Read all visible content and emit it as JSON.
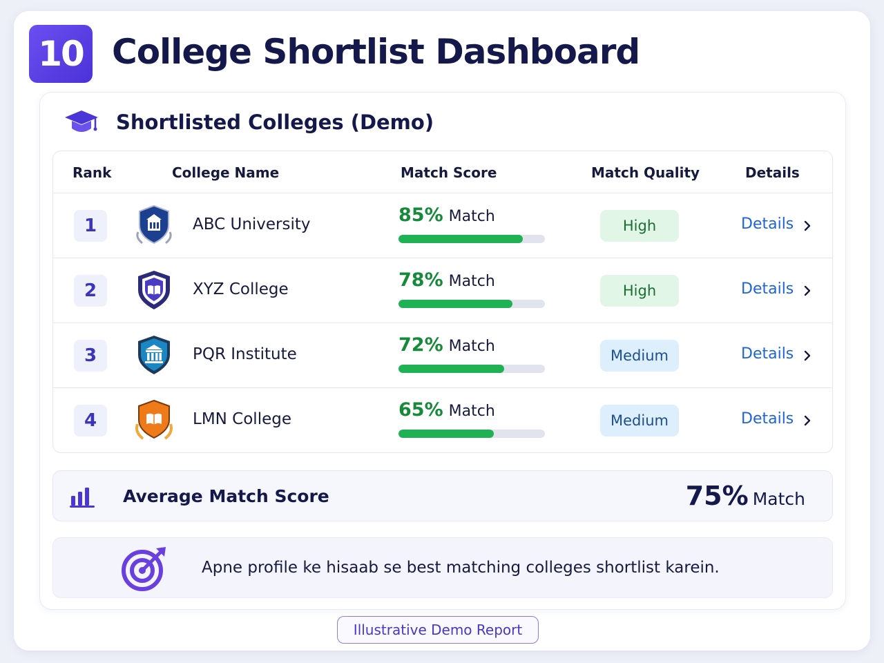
{
  "header": {
    "step_number": "10",
    "title": "College Shortlist Dashboard"
  },
  "card": {
    "title": "Shortlisted Colleges (Demo)",
    "icon": "graduation-cap-icon"
  },
  "table": {
    "columns": [
      "Rank",
      "College Name",
      "Match Score",
      "Match Quality",
      "Details"
    ],
    "rows": [
      {
        "rank": "1",
        "name": "ABC University",
        "crest": "university-crest-icon",
        "crest_color": "#1d3f8f",
        "score_pct": "85%",
        "score_word": "Match",
        "score_value": 85,
        "quality": "High",
        "details": "Details"
      },
      {
        "rank": "2",
        "name": "XYZ College",
        "crest": "book-crest-icon",
        "crest_color": "#3a2f9e",
        "score_pct": "78%",
        "score_word": "Match",
        "score_value": 78,
        "quality": "High",
        "details": "Details"
      },
      {
        "rank": "3",
        "name": "PQR Institute",
        "crest": "pillars-crest-icon",
        "crest_color": "#1b78b8",
        "score_pct": "72%",
        "score_word": "Match",
        "score_value": 72,
        "quality": "Medium",
        "details": "Details"
      },
      {
        "rank": "4",
        "name": "LMN College",
        "crest": "book-laurel-crest-icon",
        "crest_color": "#f07a1a",
        "score_pct": "65%",
        "score_word": "Match",
        "score_value": 65,
        "quality": "Medium",
        "details": "Details"
      }
    ]
  },
  "average": {
    "label": "Average Match Score",
    "value": "75%",
    "word": "Match",
    "icon": "bar-chart-icon"
  },
  "tip": {
    "text": "Apne profile ke hisaab se best matching colleges shortlist karein.",
    "icon": "target-arrow-icon"
  },
  "footer": {
    "badge": "Illustrative Demo Report"
  },
  "colors": {
    "accent": "#5b3fe4",
    "score_green": "#1fb254",
    "link_blue": "#1d64d8"
  }
}
